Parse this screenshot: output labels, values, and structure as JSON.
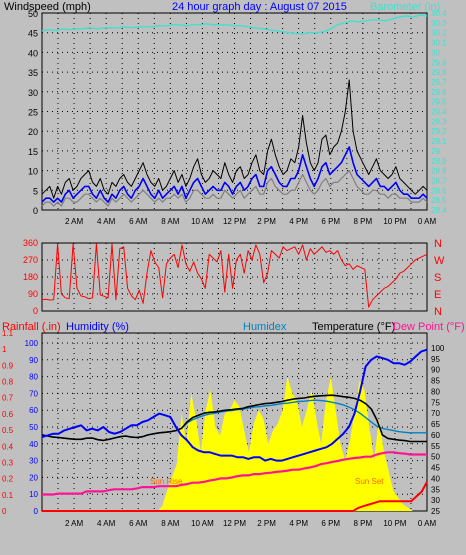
{
  "chart_data": [
    {
      "type": "line",
      "title": "24 hour graph day : August 07 2015",
      "ylabel_left": "Windspeed (mph)",
      "ylabel_right": "Barometer (in)",
      "x_ticks": [
        "2 AM",
        "4 AM",
        "6 AM",
        "8 AM",
        "10 AM",
        "12 PM",
        "2 PM",
        "4 PM",
        "6 PM",
        "8 PM",
        "10 PM",
        "0 AM"
      ],
      "y_left_ticks": [
        "0",
        "5",
        "10",
        "15",
        "20",
        "25",
        "30",
        "35",
        "40",
        "45",
        "50"
      ],
      "ylim_left": [
        0,
        50
      ],
      "y_right_ticks": [
        "28.4",
        "28.5",
        "28.6",
        "28.7",
        "28.8",
        "28.9",
        "29",
        "29.1",
        "29.2",
        "29.3",
        "29.4",
        "29.5",
        "29.6",
        "29.7",
        "29.8",
        "29.9",
        "30",
        "30.1",
        "30.2",
        "30.3",
        "30.4"
      ],
      "ylim_right": [
        28.4,
        30.4
      ],
      "grid": true,
      "colors": {
        "gust": "#000000",
        "wind": "#0000ff",
        "avg": "#808080",
        "barometer": "#40e0d0",
        "title": "#0000ff"
      },
      "series": [
        {
          "key": "gust",
          "values": [
            4,
            5,
            6,
            3,
            6,
            4,
            7,
            8,
            5,
            6,
            8,
            9,
            10,
            7,
            6,
            8,
            5,
            4,
            7,
            6,
            8,
            9,
            7,
            6,
            8,
            10,
            12,
            9,
            7,
            6,
            8,
            5,
            6,
            8,
            10,
            7,
            9,
            6,
            8,
            11,
            13,
            9,
            7,
            8,
            10,
            9,
            8,
            12,
            9,
            7,
            10,
            11,
            8,
            9,
            12,
            14,
            10,
            9,
            15,
            18,
            14,
            11,
            9,
            10,
            13,
            12,
            16,
            24,
            17,
            12,
            10,
            12,
            18,
            19,
            14,
            16,
            17,
            20,
            25,
            33,
            20,
            15,
            13,
            11,
            9,
            11,
            13,
            10,
            9,
            8,
            9,
            11,
            8,
            7,
            6,
            5,
            4,
            5,
            6,
            5
          ]
        },
        {
          "key": "wind",
          "values": [
            2,
            3,
            3,
            2,
            3,
            2,
            4,
            5,
            3,
            4,
            5,
            6,
            6,
            4,
            3,
            5,
            3,
            2,
            4,
            3,
            5,
            6,
            4,
            3,
            5,
            6,
            8,
            6,
            4,
            3,
            5,
            3,
            4,
            5,
            6,
            4,
            6,
            3,
            5,
            7,
            8,
            6,
            4,
            5,
            6,
            5,
            5,
            7,
            6,
            4,
            6,
            7,
            5,
            6,
            8,
            9,
            6,
            6,
            10,
            11,
            9,
            7,
            6,
            6,
            8,
            8,
            10,
            14,
            11,
            8,
            6,
            8,
            11,
            12,
            9,
            10,
            11,
            12,
            14,
            16,
            12,
            9,
            8,
            7,
            6,
            7,
            8,
            6,
            6,
            5,
            6,
            7,
            5,
            4,
            4,
            3,
            3,
            3,
            4,
            3
          ]
        },
        {
          "key": "avg",
          "values": [
            1,
            2,
            2,
            1,
            2,
            1,
            3,
            3,
            2,
            2,
            3,
            4,
            4,
            3,
            2,
            3,
            2,
            1,
            3,
            2,
            3,
            4,
            3,
            2,
            3,
            4,
            5,
            4,
            3,
            2,
            3,
            2,
            3,
            3,
            4,
            3,
            4,
            2,
            3,
            5,
            5,
            4,
            3,
            3,
            4,
            3,
            3,
            5,
            4,
            3,
            4,
            5,
            3,
            4,
            5,
            6,
            4,
            4,
            7,
            8,
            6,
            5,
            4,
            4,
            5,
            5,
            7,
            9,
            7,
            5,
            4,
            5,
            7,
            8,
            6,
            7,
            7,
            8,
            9,
            10,
            8,
            6,
            5,
            4,
            4,
            5,
            5,
            4,
            4,
            3,
            4,
            4,
            3,
            3,
            3,
            2,
            2,
            2,
            3,
            2
          ]
        },
        {
          "key": "barometer",
          "values": [
            30.22,
            30.23,
            30.22,
            30.24,
            30.23,
            30.24,
            30.24,
            30.25,
            30.24,
            30.25,
            30.25,
            30.25,
            30.26,
            30.25,
            30.26,
            30.26,
            30.26,
            30.27,
            30.27,
            30.28,
            30.28,
            30.27,
            30.28,
            30.28,
            30.29,
            30.28,
            30.28,
            30.28,
            30.27,
            30.27,
            30.26,
            30.25,
            30.24,
            30.23,
            30.22,
            30.21,
            30.2,
            30.19,
            30.19,
            30.2,
            30.2,
            30.21,
            30.24,
            30.28,
            30.3,
            30.32,
            30.31,
            30.32,
            30.33,
            30.33,
            30.32,
            30.34,
            30.36,
            30.37,
            30.36,
            30.38,
            30.37
          ]
        }
      ]
    },
    {
      "type": "line",
      "ylabel_right": [
        "N",
        "W",
        "S",
        "E",
        "N"
      ],
      "y_left_ticks": [
        "0",
        "90",
        "180",
        "270",
        "360"
      ],
      "ylim": [
        0,
        360
      ],
      "color": "#ff0000",
      "series": [
        {
          "key": "direction",
          "values": [
            60,
            62,
            58,
            60,
            355,
            90,
            70,
            65,
            355,
            120,
            80,
            75,
            65,
            70,
            355,
            85,
            78,
            70,
            355,
            60,
            330,
            340,
            120,
            80,
            60,
            110,
            40,
            200,
            320,
            260,
            230,
            70,
            250,
            280,
            300,
            230,
            350,
            250,
            210,
            260,
            200,
            170,
            120,
            300,
            280,
            260,
            320,
            100,
            300,
            120,
            270,
            300,
            200,
            320,
            270,
            350,
            300,
            150,
            200,
            320,
            300,
            280,
            340,
            320,
            330,
            340,
            300,
            350,
            270,
            330,
            300,
            320,
            340,
            310,
            320,
            300,
            320,
            270,
            240,
            250,
            220,
            240,
            230,
            220,
            20,
            60,
            80,
            100,
            120,
            130,
            150,
            170,
            200,
            210,
            230,
            250,
            270,
            280,
            290,
            300
          ]
        }
      ]
    },
    {
      "type": "line",
      "labels": {
        "rainfall": "Rainfall (.in)",
        "humidity": "Humidity (%)",
        "humidex": "Humidex",
        "temperature": "Temperature (°F)",
        "dewpoint": "Dew Point (°F)"
      },
      "y_left_ticks": [
        "0",
        "10",
        "20",
        "30",
        "40",
        "50",
        "60",
        "70",
        "80",
        "90",
        "100"
      ],
      "y_rain_ticks": [
        "0",
        "0.1",
        "0.2",
        "0.3",
        "0.4",
        "0.5",
        "0.6",
        "0.7",
        "0.8",
        "0.9",
        "1",
        "1.1"
      ],
      "y_right_ticks": [
        "25",
        "30",
        "35",
        "40",
        "45",
        "50",
        "55",
        "60",
        "65",
        "70",
        "75",
        "80",
        "85",
        "90",
        "95",
        "100"
      ],
      "ylim_temp": [
        25,
        100
      ],
      "annotations": {
        "sunrise": "Sun Rise",
        "sunset": "Sun Set"
      },
      "colors": {
        "rainfall": "#ff0000",
        "humidity": "#0000ff",
        "humidex": "#0080c0",
        "temperature": "#000000",
        "dewpoint": "#ff1493",
        "solar": "#ffff00"
      },
      "series": [
        {
          "key": "temperature",
          "values": [
            60.0,
            59.5,
            59.0,
            58.8,
            58.5,
            58.2,
            58.0,
            58.0,
            58.5,
            58.6,
            57.8,
            57.5,
            58.0,
            58.6,
            59.2,
            59.5,
            59.0,
            58.8,
            59.2,
            60.0,
            60.5,
            61.0,
            61.2,
            61.5,
            62.0,
            63.0,
            66.0,
            68.0,
            69.0,
            70.0,
            70.4,
            70.6,
            71.0,
            71.4,
            71.6,
            72.0,
            72.2,
            73.0,
            73.5,
            74.0,
            74.4,
            74.6,
            75.0,
            75.4,
            76.0,
            76.5,
            76.8,
            77.0,
            77.5,
            77.8,
            78.0,
            78.2,
            78.3,
            78.0,
            77.6,
            77.3,
            76.8,
            76.0,
            74.4,
            72.0,
            67.0,
            60.0,
            58.4,
            58.0,
            57.6,
            57.4,
            57.0,
            57.0,
            57.0,
            57.0
          ]
        },
        {
          "key": "humidex",
          "values": [
            60.0,
            59.5,
            59.0,
            58.8,
            58.5,
            58.2,
            58.0,
            58.0,
            58.5,
            58.6,
            57.8,
            57.5,
            58.0,
            58.6,
            59.2,
            59.5,
            59.0,
            58.8,
            59.2,
            60.0,
            60.5,
            61.0,
            61.2,
            61.5,
            62.0,
            63.0,
            65.5,
            67.0,
            68.0,
            69.0,
            69.6,
            70.0,
            70.6,
            71.0,
            71.2,
            71.6,
            71.8,
            72.4,
            72.8,
            73.0,
            73.4,
            73.6,
            74.0,
            74.4,
            74.6,
            75.0,
            75.4,
            75.5,
            75.8,
            76.0,
            75.8,
            75.5,
            75.0,
            74.5,
            73.8,
            72.8,
            71.6,
            70.0,
            68.0,
            66.0,
            64.0,
            63.0,
            62.5,
            62.0,
            61.5,
            61.2,
            61.0,
            61.0,
            61.0,
            61.0
          ]
        },
        {
          "key": "humidity",
          "values": [
            44,
            45,
            46,
            46,
            48,
            49,
            50,
            51,
            48,
            49,
            48,
            50,
            47,
            46,
            47,
            49,
            51,
            51,
            53,
            54,
            56,
            58,
            57,
            56,
            50,
            45,
            42,
            38,
            36,
            35,
            35,
            34,
            33,
            33,
            33,
            32,
            32,
            31,
            32,
            32,
            30,
            31,
            30,
            30,
            31,
            32,
            33,
            34,
            35,
            36,
            37,
            38,
            40,
            43,
            46,
            50,
            58,
            71,
            86,
            90,
            92,
            91,
            90,
            88,
            88,
            87,
            89,
            92,
            95,
            96
          ]
        },
        {
          "key": "dewpoint",
          "values": [
            32.6,
            32.6,
            32.6,
            33.0,
            33.0,
            33.0,
            33.0,
            33.0,
            34.0,
            34.0,
            34.0,
            34.0,
            34.6,
            35.0,
            35.0,
            35.0,
            35.0,
            35.4,
            36.0,
            36.0,
            36.0,
            36.4,
            36.4,
            36.4,
            36.4,
            37.0,
            37.4,
            38.0,
            38.0,
            38.4,
            39.0,
            39.4,
            40.0,
            40.0,
            40.4,
            41.0,
            41.4,
            41.4,
            42.0,
            42.0,
            42.4,
            42.6,
            43.0,
            43.2,
            43.6,
            44.0,
            44.0,
            44.6,
            45.0,
            45.6,
            46.6,
            47.0,
            47.6,
            48.0,
            48.6,
            49.0,
            49.4,
            49.6,
            50.0,
            50.0,
            51.0,
            51.6,
            52.0,
            52.0,
            51.6,
            51.4,
            51.0,
            51.0,
            51.0,
            51.0
          ]
        },
        {
          "key": "rainfall",
          "values": [
            0,
            0,
            0,
            0,
            0,
            0,
            0,
            0,
            0,
            0,
            0,
            0,
            0,
            0,
            0,
            0,
            0,
            0,
            0,
            0,
            0,
            0,
            0,
            0,
            0,
            0,
            0,
            0,
            0,
            0,
            0,
            0,
            0,
            0,
            0,
            0,
            0,
            0,
            0,
            0,
            0,
            0,
            0,
            0,
            0,
            0,
            0,
            0,
            0,
            0,
            0,
            0,
            0,
            0,
            0,
            0,
            0,
            0,
            0,
            0,
            0.02,
            0.03,
            0.04,
            0.05,
            0.06,
            0.06,
            0.06,
            0.06,
            0.06,
            0.06,
            0.06,
            0.09,
            0.12,
            0.18
          ]
        },
        {
          "key": "solar",
          "values": [
            0,
            0,
            0,
            0,
            0,
            0,
            0,
            0,
            0,
            0,
            0,
            0,
            0,
            0,
            0,
            0,
            0,
            0,
            0,
            0,
            0,
            0,
            0,
            0,
            0,
            3,
            12,
            20,
            28,
            58,
            40,
            70,
            55,
            35,
            60,
            72,
            50,
            45,
            58,
            60,
            66,
            62,
            48,
            35,
            52,
            60,
            55,
            40,
            48,
            52,
            60,
            80,
            70,
            65,
            50,
            60,
            72,
            55,
            40,
            65,
            80,
            60,
            40,
            30,
            42,
            60,
            78,
            72,
            50,
            30,
            55,
            36,
            24,
            12,
            8,
            4,
            2,
            0,
            0,
            0,
            0
          ]
        }
      ]
    }
  ],
  "legend": {
    "windspeed": "Windspeed (mph)",
    "title": "24 hour graph day : August 07 2015",
    "barometer": "Barometer (in)",
    "rainfall": "Rainfall (.in)",
    "humidity": "Humidity (%)",
    "humidex": "Humidex",
    "temperature": "Temperature (°F)",
    "dewpoint": "Dew Point (°F)"
  }
}
